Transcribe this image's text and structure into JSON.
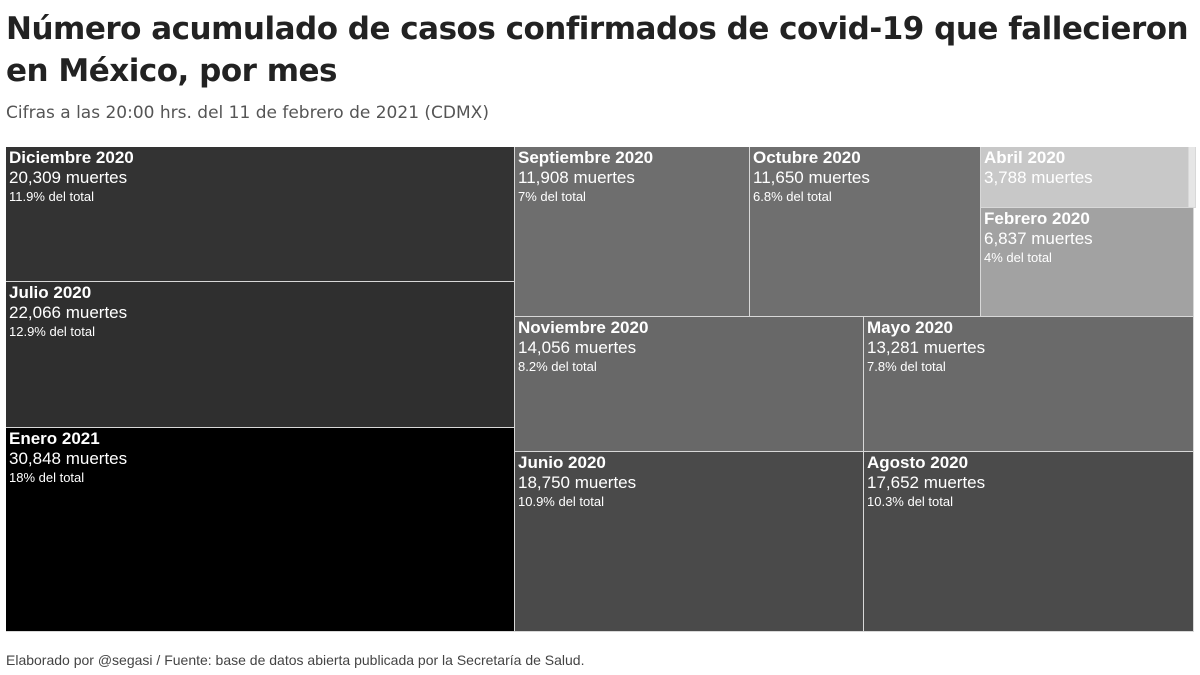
{
  "header": {
    "title": "Número acumulado de casos confirmados de covid-19 que fallecieron en México, por mes",
    "subtitle": "Cifras a las 20:00 hrs. del 11 de febrero de 2021 (CDMX)"
  },
  "footer": {
    "source": "Elaborado por @segasi / Fuente: base de datos abierta publicada por la Secretaría de Salud."
  },
  "chart_data": {
    "type": "treemap",
    "title": "Número acumulado de casos confirmados de covid-19 que fallecieron en México, por mes",
    "subtitle": "Cifras a las 20:00 hrs. del 11 de febrero de 2021 (CDMX)",
    "value_unit": "muertes",
    "items": [
      {
        "label": "Diciembre 2020",
        "value": 20309,
        "value_text": "20,309 muertes",
        "share_text": "11.9% del total",
        "color": "#333333"
      },
      {
        "label": "Julio 2020",
        "value": 22066,
        "value_text": "22,066 muertes",
        "share_text": "12.9% del total",
        "color": "#2f2f2f"
      },
      {
        "label": "Enero 2021",
        "value": 30848,
        "value_text": "30,848 muertes",
        "share_text": "18% del total",
        "color": "#000000"
      },
      {
        "label": "Septiembre 2020",
        "value": 11908,
        "value_text": "11,908 muertes",
        "share_text": "7% del total",
        "color": "#6e6e6e"
      },
      {
        "label": "Octubre 2020",
        "value": 11650,
        "value_text": "11,650 muertes",
        "share_text": "6.8% del total",
        "color": "#6f6f6f"
      },
      {
        "label": "Abril 2020",
        "value": 3788,
        "value_text": "3,788 muertes",
        "share_text": "",
        "color": "#c8c8c8"
      },
      {
        "label": "",
        "value": null,
        "value_text": "",
        "share_text": "",
        "color": "#e6e6e6"
      },
      {
        "label": "Febrero 2020",
        "value": 6837,
        "value_text": "6,837 muertes",
        "share_text": "4% del total",
        "color": "#a2a2a2"
      },
      {
        "label": "Noviembre 2020",
        "value": 14056,
        "value_text": "14,056 muertes",
        "share_text": "8.2% del total",
        "color": "#686868"
      },
      {
        "label": "Mayo 2020",
        "value": 13281,
        "value_text": "13,281 muertes",
        "share_text": "7.8% del total",
        "color": "#6a6a6a"
      },
      {
        "label": "Junio 2020",
        "value": 18750,
        "value_text": "18,750 muertes",
        "share_text": "10.9% del total",
        "color": "#4a4a4a"
      },
      {
        "label": "Agosto 2020",
        "value": 17652,
        "value_text": "17,652 muertes",
        "share_text": "10.3% del total",
        "color": "#4b4b4b"
      }
    ]
  }
}
